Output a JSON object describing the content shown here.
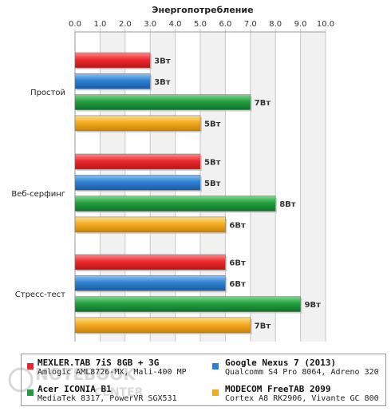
{
  "chart_data": {
    "type": "bar",
    "orientation": "horizontal",
    "title": "Энергопотребление",
    "xlim": [
      0,
      10
    ],
    "xticks": [
      "0.0",
      "1.0",
      "2.0",
      "3.0",
      "4.0",
      "5.0",
      "6.0",
      "7.0",
      "8.0",
      "9.0",
      "10.0"
    ],
    "x_axis_position": "top",
    "grid": true,
    "categories": [
      "Простой",
      "Веб-серфинг",
      "Стресс-тест"
    ],
    "unit_suffix": "Вт",
    "series": [
      {
        "name": "MEXLER.TAB 7iS 8GB + 3G",
        "description": "Amlogic AML8726-MX, Mali-400 MP",
        "color": "#e8262a",
        "values": [
          3,
          5,
          6
        ]
      },
      {
        "name": "Google Nexus 7 (2013)",
        "description": "Qualcomm S4 Pro 8064, Adreno 320",
        "color": "#2d7fd0",
        "values": [
          3,
          5,
          6
        ]
      },
      {
        "name": "Acer ICONIA B1",
        "description": "MediaTek 8317, PowerVR SGX531",
        "color": "#1f9a3c",
        "values": [
          7,
          8,
          9
        ]
      },
      {
        "name": "MODECOM FreeTAB 2099",
        "description": "Cortex A8 RK2906, Vivante GC 800",
        "color": "#f3a91f",
        "values": [
          5,
          6,
          7
        ]
      }
    ],
    "legend_position": "bottom"
  },
  "watermark": {
    "line1": "NOTEBOOK",
    "line2": "CENTER"
  }
}
